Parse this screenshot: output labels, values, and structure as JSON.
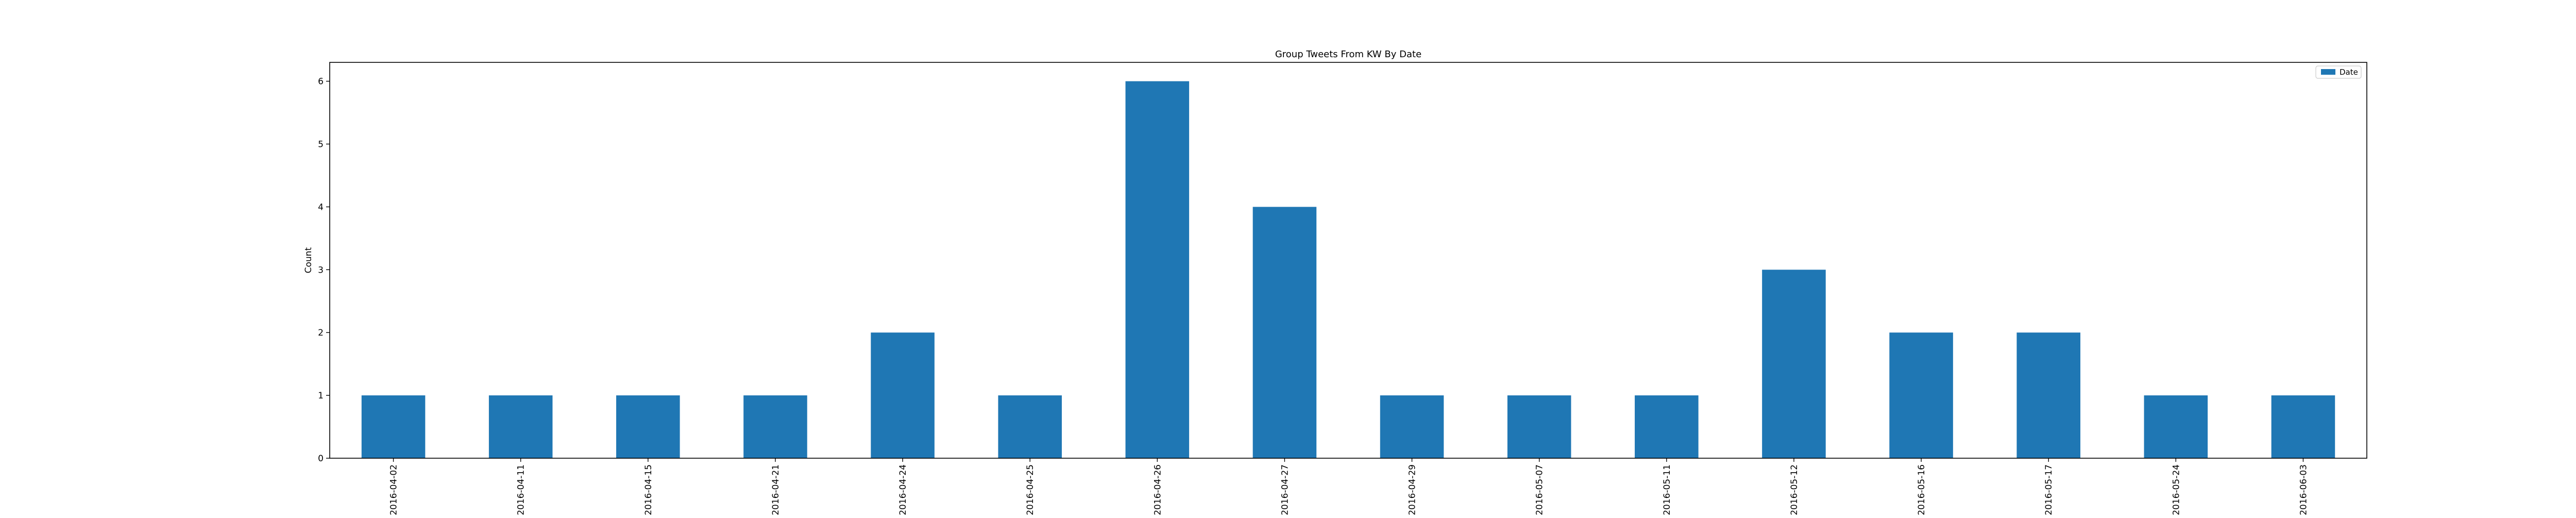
{
  "chart_data": {
    "type": "bar",
    "title": "Group Tweets From KW By Date",
    "xlabel": "",
    "ylabel": "Count",
    "categories": [
      "2016-04-02",
      "2016-04-11",
      "2016-04-15",
      "2016-04-21",
      "2016-04-24",
      "2016-04-25",
      "2016-04-26",
      "2016-04-27",
      "2016-04-29",
      "2016-05-07",
      "2016-05-11",
      "2016-05-12",
      "2016-05-16",
      "2016-05-17",
      "2016-05-24",
      "2016-06-03"
    ],
    "series": [
      {
        "name": "Date",
        "values": [
          1,
          1,
          1,
          1,
          2,
          1,
          6,
          4,
          1,
          1,
          1,
          3,
          2,
          2,
          1,
          1
        ]
      }
    ],
    "ylim": [
      0,
      6.3
    ],
    "yticks": [
      0,
      1,
      2,
      3,
      4,
      5,
      6
    ],
    "grid": false,
    "legend_position": "top-right",
    "colors": {
      "bar": "#1f77b4",
      "axis": "#000000",
      "background": "#ffffff"
    }
  }
}
